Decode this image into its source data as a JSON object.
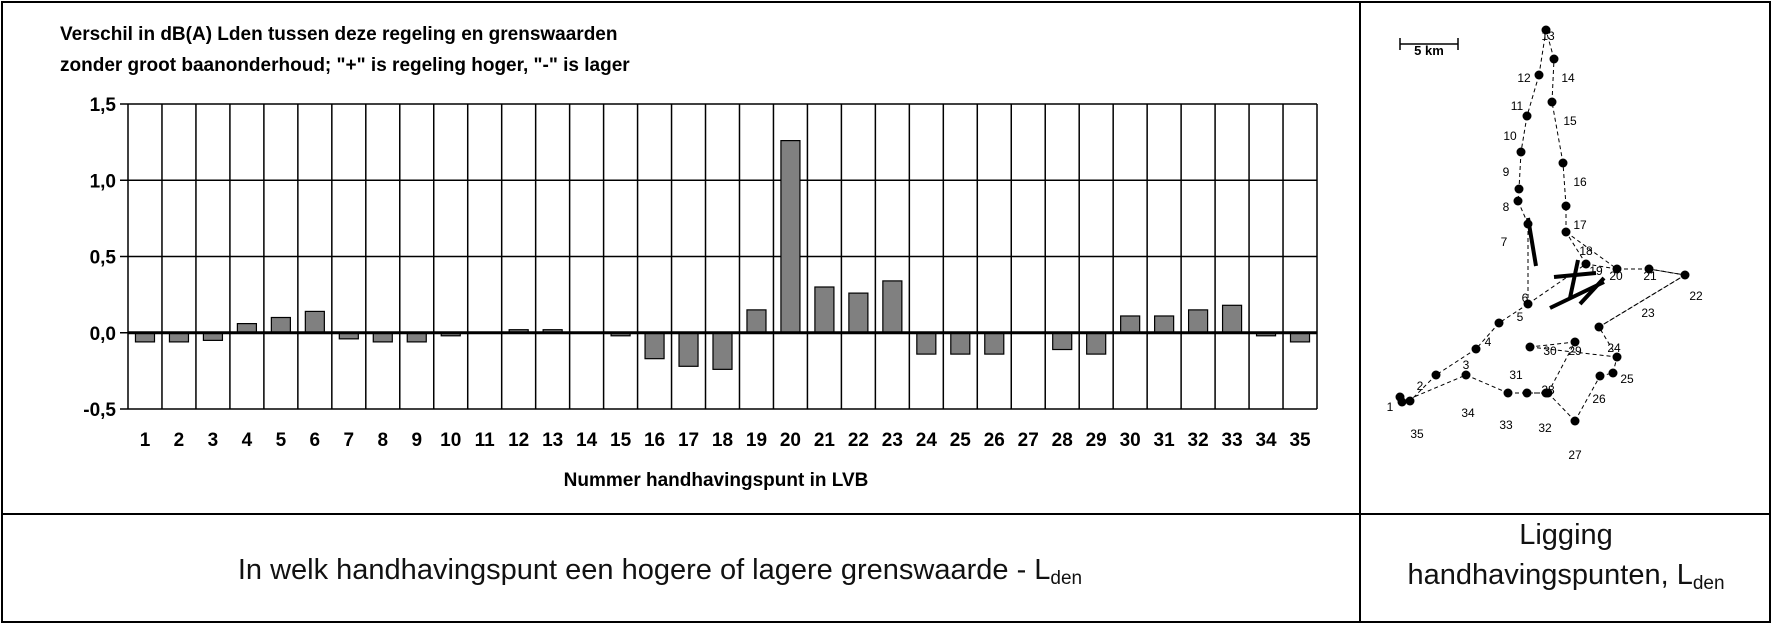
{
  "chart_data": {
    "type": "bar",
    "title_lines": [
      "Verschil in dB(A) Lden tussen deze regeling en grenswaarden",
      "zonder groot baanonderhoud; \"+\" is regeling hoger, \"-\" is lager"
    ],
    "xlabel": "Nummer handhavingspunt in LVB",
    "ylabel": "",
    "ylim": [
      -0.5,
      1.5
    ],
    "yticks": [
      -0.5,
      0.0,
      0.5,
      1.0,
      1.5
    ],
    "ytick_labels": [
      "-0,5",
      "0,0",
      "0,5",
      "1,0",
      "1,5"
    ],
    "grid": true,
    "categories": [
      "1",
      "2",
      "3",
      "4",
      "5",
      "6",
      "7",
      "8",
      "9",
      "10",
      "11",
      "12",
      "13",
      "14",
      "15",
      "16",
      "17",
      "18",
      "19",
      "20",
      "21",
      "22",
      "23",
      "24",
      "25",
      "26",
      "27",
      "28",
      "29",
      "30",
      "31",
      "32",
      "33",
      "34",
      "35"
    ],
    "values": [
      -0.06,
      -0.06,
      -0.05,
      0.06,
      0.1,
      0.14,
      -0.04,
      -0.06,
      -0.06,
      -0.02,
      0.0,
      0.02,
      0.02,
      0.0,
      -0.02,
      -0.17,
      -0.22,
      -0.24,
      0.15,
      1.26,
      0.3,
      0.26,
      0.34,
      -0.14,
      -0.14,
      -0.14,
      0.0,
      -0.11,
      -0.14,
      0.11,
      0.11,
      0.15,
      0.18,
      -0.02,
      -0.06
    ],
    "bar_color": "#808080"
  },
  "captions": {
    "chart_caption_main": "In welk handhavingspunt een hogere of lagere grenswaarde - L",
    "chart_caption_sub": "den",
    "map_caption_line1": "Ligging",
    "map_caption_line2_main": "handhavingspunten, L",
    "map_caption_line2_sub": "den"
  },
  "map": {
    "scale_label": "5 km",
    "point_labels": [
      "1",
      "2",
      "3",
      "4",
      "5",
      "6",
      "7",
      "8",
      "9",
      "10",
      "11",
      "12",
      "13",
      "14",
      "15",
      "16",
      "17",
      "18",
      "19",
      "20",
      "21",
      "22",
      "23",
      "24",
      "25",
      "26",
      "27",
      "28",
      "29",
      "30",
      "31",
      "32",
      "33",
      "34",
      "35"
    ]
  }
}
